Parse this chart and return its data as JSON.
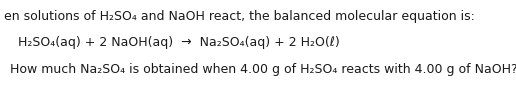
{
  "line1": "en solutions of H₂SO₄ and NaOH react, the balanced molecular equation is:",
  "line2": "H₂SO₄(aq) + 2 NaOH(aq)  →  Na₂SO₄(aq) + 2 H₂O(ℓ)",
  "line3": "How much Na₂SO₄ is obtained when 4.00 g of H₂SO₄ reacts with 4.00 g of NaOH?",
  "bg_color": "#ffffff",
  "text_color": "#1a1a1a",
  "font_size": 9.0,
  "fig_width": 5.16,
  "fig_height": 0.88,
  "dpi": 100
}
